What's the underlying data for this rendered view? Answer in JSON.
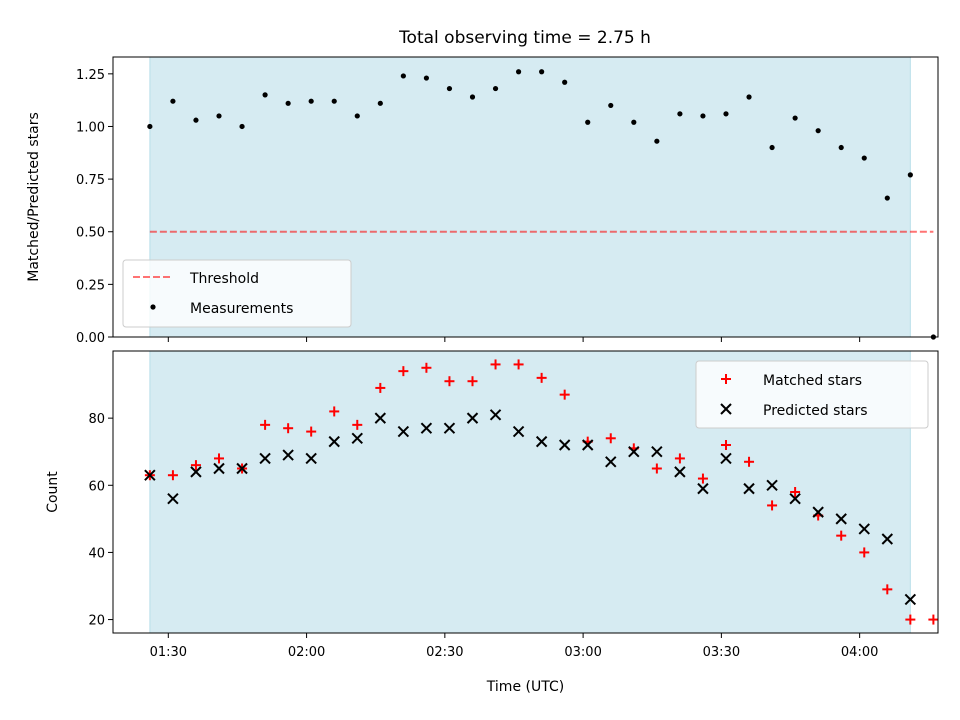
{
  "chart_data": {
    "type": "scatter",
    "title": "Total observing time = 2.75 h",
    "xlabel": "Time (UTC)",
    "x_tick_labels": [
      "01:30",
      "02:00",
      "02:30",
      "03:00",
      "03:30",
      "04:00"
    ],
    "x_tick_values": [
      90,
      120,
      150,
      180,
      210,
      240
    ],
    "xlim": [
      78,
      257
    ],
    "observing_window": [
      86,
      251
    ],
    "colors": {
      "window": "#add8e6",
      "threshold": "#ff0000",
      "measurements": "#000000",
      "matched": "#ff0000",
      "predicted": "#000000"
    },
    "top": {
      "ylabel": "Matched/Predicted stars",
      "ylim": [
        0,
        1.33
      ],
      "y_ticks": [
        0.0,
        0.25,
        0.5,
        0.75,
        1.0,
        1.25
      ],
      "y_tick_labels": [
        "0.00",
        "0.25",
        "0.50",
        "0.75",
        "1.00",
        "1.25"
      ],
      "legend_location": "lower-left",
      "threshold": {
        "name": "Threshold",
        "y": 0.5,
        "x_range": [
          86,
          256
        ]
      },
      "measurements": {
        "name": "Measurements",
        "x": [
          86,
          91,
          96,
          101,
          106,
          111,
          116,
          121,
          126,
          131,
          136,
          141,
          146,
          151,
          156,
          161,
          166,
          171,
          176,
          181,
          186,
          191,
          196,
          201,
          206,
          211,
          216,
          221,
          226,
          231,
          236,
          241,
          246,
          251,
          256
        ],
        "y": [
          1.0,
          1.12,
          1.03,
          1.05,
          1.0,
          1.15,
          1.11,
          1.12,
          1.12,
          1.05,
          1.11,
          1.24,
          1.23,
          1.18,
          1.14,
          1.18,
          1.26,
          1.26,
          1.21,
          1.02,
          1.1,
          1.02,
          0.93,
          1.06,
          1.05,
          1.06,
          1.14,
          0.9,
          1.04,
          0.98,
          0.9,
          0.85,
          0.66,
          0.77,
          0.0
        ]
      }
    },
    "bottom": {
      "ylabel": "Count",
      "ylim": [
        16,
        100
      ],
      "y_ticks": [
        20,
        40,
        60,
        80
      ],
      "y_tick_labels": [
        "20",
        "40",
        "60",
        "80"
      ],
      "legend_location": "upper-right",
      "series": [
        {
          "name": "Matched stars",
          "marker": "+",
          "x": [
            86,
            91,
            96,
            101,
            106,
            111,
            116,
            121,
            126,
            131,
            136,
            141,
            146,
            151,
            156,
            161,
            166,
            171,
            176,
            181,
            186,
            191,
            196,
            201,
            206,
            211,
            216,
            221,
            226,
            231,
            236,
            241,
            246,
            251,
            256
          ],
          "y": [
            63,
            63,
            66,
            68,
            65,
            78,
            77,
            76,
            82,
            78,
            89,
            94,
            95,
            91,
            91,
            96,
            96,
            92,
            87,
            73,
            74,
            71,
            65,
            68,
            62,
            72,
            67,
            54,
            58,
            51,
            45,
            40,
            29,
            20,
            20
          ]
        },
        {
          "name": "Predicted stars",
          "marker": "x",
          "x": [
            86,
            91,
            96,
            101,
            106,
            111,
            116,
            121,
            126,
            131,
            136,
            141,
            146,
            151,
            156,
            161,
            166,
            171,
            176,
            181,
            186,
            191,
            196,
            201,
            206,
            211,
            216,
            221,
            226,
            231,
            236,
            241,
            246,
            251
          ],
          "y": [
            63,
            56,
            64,
            65,
            65,
            68,
            69,
            68,
            73,
            74,
            80,
            76,
            77,
            77,
            80,
            81,
            76,
            73,
            72,
            72,
            67,
            70,
            70,
            64,
            59,
            68,
            59,
            60,
            56,
            52,
            50,
            47,
            44,
            26
          ]
        }
      ]
    }
  }
}
